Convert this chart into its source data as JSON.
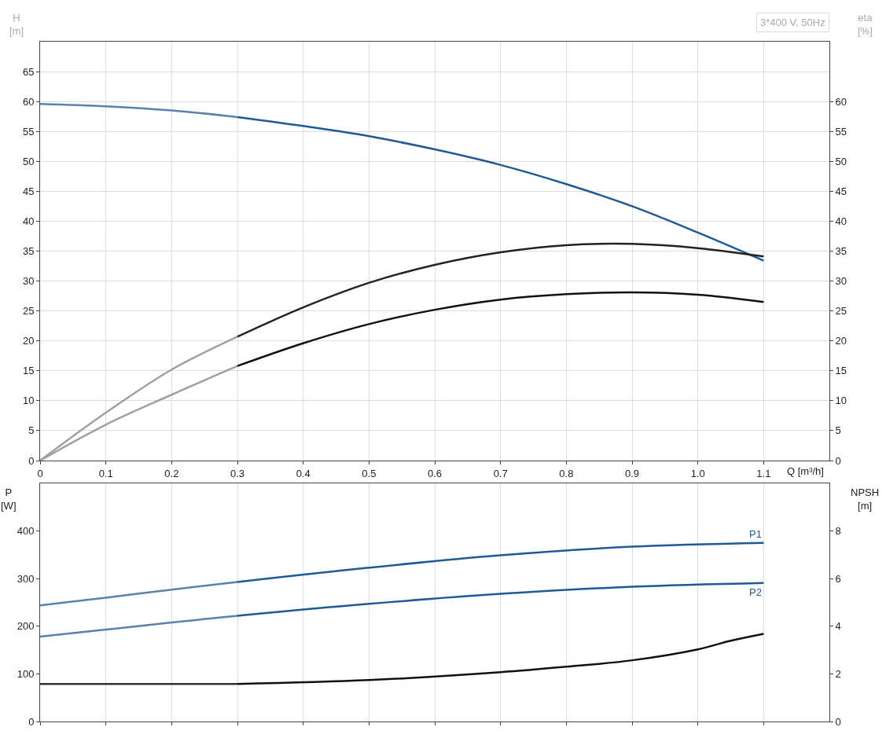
{
  "chart_data": [
    {
      "type": "line",
      "xlabel": "Q [m³/h]",
      "ylabel": "H\n[m]",
      "y2label": "eta\n[%]",
      "annotations": [
        "3*400 V, 50Hz"
      ],
      "grid": true,
      "xlim": [
        0,
        1.2
      ],
      "xticks": [
        0,
        0.1,
        0.2,
        0.3,
        0.4,
        0.5,
        0.6,
        0.7,
        0.8,
        0.9,
        {
          "value": 1,
          "label": "1.0"
        },
        1.1
      ],
      "ylim": [
        0,
        70
      ],
      "yticks": [
        0,
        5,
        10,
        15,
        20,
        25,
        30,
        35,
        40,
        45,
        50,
        55,
        60,
        65
      ],
      "y2lim": [
        0,
        70
      ],
      "y2ticks": [
        0,
        5,
        10,
        15,
        20,
        25,
        30,
        35,
        40,
        45,
        50,
        55,
        60
      ],
      "series": [
        {
          "color": "#5a82aa",
          "x": [
            0,
            0.1,
            0.2,
            0.3
          ],
          "values": [
            59.6,
            59.2,
            58.5,
            57.4
          ]
        },
        {
          "color": "#1f5a96",
          "x": [
            0.3,
            0.4,
            0.5,
            0.6,
            0.7,
            0.8,
            0.9,
            1.0,
            1.1
          ],
          "values": [
            57.4,
            55.9,
            54.2,
            52.0,
            49.4,
            46.2,
            42.5,
            38.1,
            33.4
          ]
        },
        {
          "color": "#a0a0a0",
          "axis": "y2",
          "x": [
            0,
            0.1,
            0.2,
            0.3
          ],
          "values": [
            0,
            8.0,
            15.2,
            20.7
          ]
        },
        {
          "color": "#222222",
          "axis": "y2",
          "x": [
            0.3,
            0.4,
            0.5,
            0.6,
            0.7,
            0.8,
            0.9,
            1.0,
            1.1
          ],
          "values": [
            20.7,
            25.6,
            29.7,
            32.7,
            34.8,
            36.0,
            36.2,
            35.5,
            34.1
          ]
        },
        {
          "color": "#a0a0a0",
          "axis": "y2",
          "x": [
            0,
            0.1,
            0.2,
            0.3
          ],
          "values": [
            0,
            6.0,
            11.0,
            15.8
          ]
        },
        {
          "color": "#111111",
          "axis": "y2",
          "x": [
            0.3,
            0.4,
            0.5,
            0.6,
            0.7,
            0.8,
            0.9,
            1.0,
            1.1
          ],
          "values": [
            15.8,
            19.6,
            22.8,
            25.2,
            26.9,
            27.8,
            28.1,
            27.7,
            26.5
          ]
        }
      ]
    },
    {
      "type": "line",
      "ylabel": "P\n[W]",
      "y2label": "NPSH\n[m]",
      "grid": "x",
      "tick_labels": "y",
      "xlim": [
        0,
        1.2
      ],
      "xticks": [
        {
          "value": 0,
          "label": null
        },
        {
          "value": 0.1,
          "label": null
        },
        {
          "value": 0.2,
          "label": null
        },
        {
          "value": 0.3,
          "label": null
        },
        {
          "value": 0.4,
          "label": null
        },
        {
          "value": 0.5,
          "label": null
        },
        {
          "value": 0.6,
          "label": null
        },
        {
          "value": 0.7,
          "label": null
        },
        {
          "value": 0.8,
          "label": null
        },
        {
          "value": 0.9,
          "label": null
        },
        {
          "value": 1,
          "label": null
        },
        {
          "value": 1.1,
          "label": null
        }
      ],
      "ylim": [
        0,
        500
      ],
      "yticks": [
        0,
        100,
        200,
        300,
        400
      ],
      "y2lim": [
        0,
        10
      ],
      "y2ticks": [
        0,
        2,
        4,
        6,
        8
      ],
      "series": [
        {
          "color": "#5a82aa",
          "x": [
            0,
            0.1,
            0.2,
            0.3
          ],
          "values": [
            244,
            260,
            277,
            293
          ]
        },
        {
          "name": "P1",
          "color": "#1f5a96",
          "x": [
            0.3,
            0.5,
            0.7,
            0.9,
            1.1
          ],
          "values": [
            293,
            323,
            349,
            367,
            375
          ]
        },
        {
          "color": "#5a82aa",
          "x": [
            0,
            0.1,
            0.2,
            0.3
          ],
          "values": [
            178,
            193,
            208,
            222
          ]
        },
        {
          "name": "P2",
          "color": "#1f5a96",
          "x": [
            0.3,
            0.5,
            0.7,
            0.9,
            1.1
          ],
          "values": [
            222,
            247,
            268,
            283,
            291
          ]
        },
        {
          "color": "#333333",
          "axis": "y2",
          "x": [
            0,
            0.1,
            0.2,
            0.3
          ],
          "values": [
            1.58,
            1.58,
            1.58,
            1.58
          ]
        },
        {
          "color": "#111111",
          "axis": "y2",
          "x": [
            0.3,
            0.5,
            0.7,
            0.8,
            0.9,
            1.0,
            1.05,
            1.1
          ],
          "values": [
            1.58,
            1.74,
            2.07,
            2.3,
            2.57,
            3.03,
            3.39,
            3.68
          ]
        }
      ]
    }
  ]
}
